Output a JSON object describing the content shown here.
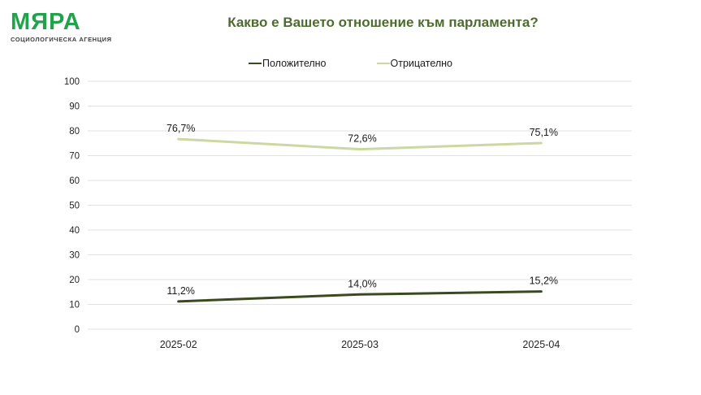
{
  "logo": {
    "name": "МЯРА",
    "tagline": "СОЦИОЛОГИЧЕСКА АГЕНЦИЯ",
    "brand_color": "#23a24d"
  },
  "title": "Какво е Вашето отношение към парламента?",
  "title_color": "#4e6b2f",
  "chart_data": {
    "type": "line",
    "title": "Какво е Вашето отношение към парламента?",
    "categories": [
      "2025-02",
      "2025-03",
      "2025-04"
    ],
    "series": [
      {
        "name": "Положително",
        "values": [
          11.2,
          14.0,
          15.2
        ],
        "labels": [
          "11,2%",
          "14,0%",
          "15,2%"
        ],
        "color": "#3b4a1e"
      },
      {
        "name": "Отрицателно",
        "values": [
          76.7,
          72.6,
          75.1
        ],
        "labels": [
          "76,7%",
          "72,6%",
          "75,1%"
        ],
        "color": "#cbd8a2"
      }
    ],
    "xlabel": "",
    "ylabel": "",
    "ylim": [
      0,
      100
    ],
    "yticks": [
      0,
      10,
      20,
      30,
      40,
      50,
      60,
      70,
      80,
      90,
      100
    ],
    "grid": true,
    "grid_color": "#e2e2e2",
    "legend_position": "top"
  }
}
